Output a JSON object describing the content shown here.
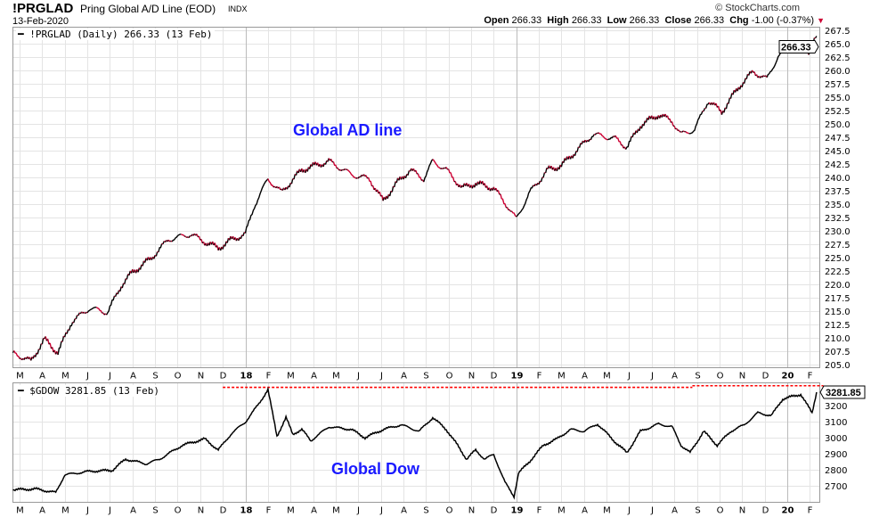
{
  "header": {
    "symbol": "!PRGLAD",
    "full_name": "Pring Global A/D Line (EOD)",
    "exchange": "INDX",
    "date": "13-Feb-2020",
    "brand": "© StockCharts.com",
    "open_label": "Open",
    "open": "266.33",
    "high_label": "High",
    "high": "266.33",
    "low_label": "Low",
    "low": "266.33",
    "close_label": "Close",
    "close": "266.33",
    "chg_label": "Chg",
    "chg": "-1.00 (-0.37%)",
    "chg_icon": "down-triangle-icon"
  },
  "colors": {
    "up": "#000000",
    "down": "#cc0033",
    "annotation": "#1a1aff",
    "resistance": "#ff0000",
    "grid": "#e4e4e4"
  },
  "chart_data": [
    {
      "type": "line",
      "title": "!PRGLAD (Daily) 266.33 (13 Feb)",
      "annotation": "Global AD line",
      "last_value_tag": "266.33",
      "x_unit": "months since Mar 2017",
      "x_ticks": [
        "M",
        "A",
        "M",
        "J",
        "J",
        "A",
        "S",
        "O",
        "N",
        "D",
        "18",
        "F",
        "M",
        "A",
        "M",
        "J",
        "J",
        "A",
        "S",
        "O",
        "N",
        "D",
        "19",
        "F",
        "M",
        "A",
        "M",
        "J",
        "J",
        "A",
        "S",
        "O",
        "N",
        "D",
        "20",
        "F"
      ],
      "ylim": [
        204.5,
        268
      ],
      "y_ticks": [
        "205.0",
        "207.5",
        "210.0",
        "212.5",
        "215.0",
        "217.5",
        "220.0",
        "222.5",
        "225.0",
        "227.5",
        "230.0",
        "232.5",
        "235.0",
        "237.5",
        "240.0",
        "242.5",
        "245.0",
        "247.5",
        "250.0",
        "252.5",
        "255.0",
        "257.5",
        "260.0",
        "262.5",
        "265.0",
        "267.5"
      ],
      "grid": true,
      "series": [
        {
          "name": "!PRGLAD",
          "points": [
            [
              -0.3,
              207.3
            ],
            [
              0.5,
              205.7
            ],
            [
              1.1,
              209.8
            ],
            [
              1.7,
              207.3
            ],
            [
              2.3,
              213
            ],
            [
              3.1,
              215.6
            ],
            [
              3.9,
              214.8
            ],
            [
              4.5,
              219.8
            ],
            [
              5.0,
              222.3
            ],
            [
              5.8,
              224.8
            ],
            [
              6.6,
              228.4
            ],
            [
              7.6,
              229.4
            ],
            [
              8.0,
              228.4
            ],
            [
              8.8,
              226.8
            ],
            [
              9.4,
              228.4
            ],
            [
              10.0,
              229.4
            ],
            [
              10.4,
              234.7
            ],
            [
              11.0,
              239.7
            ],
            [
              11.6,
              237.2
            ],
            [
              12.5,
              241.4
            ],
            [
              13.7,
              243
            ],
            [
              14.7,
              240.5
            ],
            [
              15.5,
              239.7
            ],
            [
              16.1,
              235.6
            ],
            [
              16.7,
              238.9
            ],
            [
              17.3,
              241.4
            ],
            [
              17.9,
              239.7
            ],
            [
              18.3,
              243
            ],
            [
              18.9,
              241.4
            ],
            [
              19.6,
              238
            ],
            [
              20.2,
              238.9
            ],
            [
              21.0,
              238
            ],
            [
              21.6,
              234.7
            ],
            [
              22.0,
              232.2
            ],
            [
              22.6,
              237.2
            ],
            [
              23.4,
              241.4
            ],
            [
              24.0,
              242.2
            ],
            [
              24.6,
              244.7
            ],
            [
              25.4,
              248
            ],
            [
              26.4,
              247.2
            ],
            [
              26.9,
              245.6
            ],
            [
              27.5,
              249.7
            ],
            [
              28.3,
              251.7
            ],
            [
              28.9,
              250.5
            ],
            [
              29.3,
              248
            ],
            [
              29.9,
              248.9
            ],
            [
              30.5,
              254.3
            ],
            [
              31.1,
              252.2
            ],
            [
              31.9,
              257.1
            ],
            [
              32.5,
              259.7
            ],
            [
              33.1,
              258.3
            ],
            [
              33.6,
              262.6
            ],
            [
              34.4,
              264.6
            ],
            [
              35.0,
              263.5
            ],
            [
              35.3,
              266.33
            ]
          ]
        }
      ]
    },
    {
      "type": "line",
      "title": "$GDOW 3281.85 (13 Feb)",
      "annotation": "Global Dow",
      "last_value_tag": "3281.85",
      "x_unit": "months since Mar 2017",
      "x_ticks": [
        "M",
        "A",
        "M",
        "J",
        "J",
        "A",
        "S",
        "O",
        "N",
        "D",
        "18",
        "F",
        "M",
        "A",
        "M",
        "J",
        "J",
        "A",
        "S",
        "O",
        "N",
        "D",
        "19",
        "F",
        "M",
        "A",
        "M",
        "J",
        "J",
        "A",
        "S",
        "O",
        "N",
        "D",
        "20",
        "F"
      ],
      "ylim": [
        2600,
        3340
      ],
      "y_ticks": [
        "2700",
        "2800",
        "2900",
        "3000",
        "3100",
        "3200"
      ],
      "grid": true,
      "resistance": [
        {
          "from": 9.0,
          "to": 29.8,
          "value": 3312
        },
        {
          "from": 29.8,
          "to": 35.6,
          "value": 3322
        }
      ],
      "series": [
        {
          "name": "$GDOW",
          "points": [
            [
              -0.3,
              2677
            ],
            [
              0.7,
              2683
            ],
            [
              1.6,
              2660
            ],
            [
              2.0,
              2770
            ],
            [
              3.1,
              2792
            ],
            [
              4.1,
              2798
            ],
            [
              4.7,
              2867
            ],
            [
              5.6,
              2838
            ],
            [
              6.2,
              2867
            ],
            [
              7.2,
              2953
            ],
            [
              8.2,
              2993
            ],
            [
              8.8,
              2924
            ],
            [
              9.4,
              3028
            ],
            [
              10.0,
              3097
            ],
            [
              10.6,
              3211
            ],
            [
              11.0,
              3298
            ],
            [
              11.4,
              3010
            ],
            [
              11.8,
              3125
            ],
            [
              12.1,
              3022
            ],
            [
              12.5,
              3051
            ],
            [
              12.9,
              2982
            ],
            [
              13.7,
              3068
            ],
            [
              14.7,
              3051
            ],
            [
              15.3,
              3000
            ],
            [
              16.1,
              3051
            ],
            [
              16.9,
              3080
            ],
            [
              17.7,
              3040
            ],
            [
              18.3,
              3125
            ],
            [
              18.9,
              3051
            ],
            [
              19.4,
              2953
            ],
            [
              19.8,
              2867
            ],
            [
              20.2,
              2924
            ],
            [
              20.6,
              2867
            ],
            [
              21.0,
              2896
            ],
            [
              21.5,
              2723
            ],
            [
              21.9,
              2637
            ],
            [
              22.1,
              2780
            ],
            [
              22.6,
              2855
            ],
            [
              23.2,
              2953
            ],
            [
              23.8,
              2993
            ],
            [
              24.4,
              3051
            ],
            [
              25.0,
              3040
            ],
            [
              25.6,
              3085
            ],
            [
              26.4,
              2971
            ],
            [
              26.9,
              2907
            ],
            [
              27.5,
              3040
            ],
            [
              28.3,
              3085
            ],
            [
              28.9,
              3068
            ],
            [
              29.3,
              2953
            ],
            [
              29.7,
              2907
            ],
            [
              30.3,
              3040
            ],
            [
              30.9,
              2953
            ],
            [
              31.5,
              3040
            ],
            [
              32.1,
              3080
            ],
            [
              32.7,
              3154
            ],
            [
              33.3,
              3137
            ],
            [
              33.8,
              3240
            ],
            [
              34.6,
              3269
            ],
            [
              35.1,
              3154
            ],
            [
              35.3,
              3281.85
            ]
          ]
        }
      ]
    }
  ]
}
